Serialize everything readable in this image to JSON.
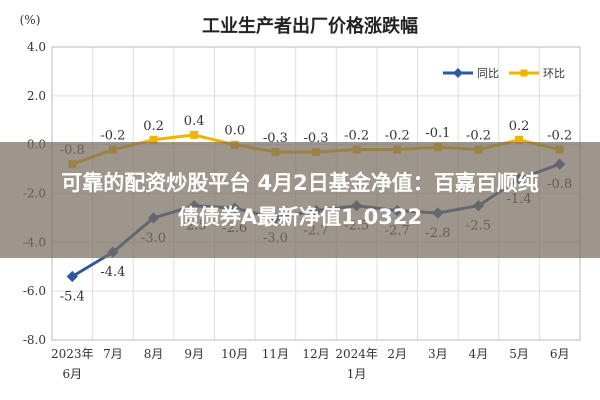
{
  "chart_data": {
    "type": "line",
    "title": "工业生产者出厂价格涨跌幅",
    "ylabel": "(%)",
    "categories": [
      "2023年6月",
      "7月",
      "8月",
      "9月",
      "10月",
      "11月",
      "12月",
      "2024年1月",
      "2月",
      "3月",
      "4月",
      "5月",
      "6月"
    ],
    "x_tick_lines": [
      [
        "2023年",
        "6月"
      ],
      [
        "7月"
      ],
      [
        "8月"
      ],
      [
        "9月"
      ],
      [
        "10月"
      ],
      [
        "11月"
      ],
      [
        "12月"
      ],
      [
        "2024年",
        "1月"
      ],
      [
        "2月"
      ],
      [
        "3月"
      ],
      [
        "4月"
      ],
      [
        "5月"
      ],
      [
        "6月"
      ]
    ],
    "ylim": [
      -8.0,
      4.0
    ],
    "y_ticks": [
      "4.0",
      "2.0",
      "0.0",
      "-2.0",
      "-4.0",
      "-6.0",
      "-8.0"
    ],
    "grid": true,
    "legend_position": "top-right",
    "series": [
      {
        "name": "同比",
        "color": "#2e5a9c",
        "values": [
          -5.4,
          -4.4,
          -3.0,
          -2.5,
          -2.6,
          -3.0,
          -2.7,
          -2.5,
          -2.7,
          -2.8,
          -2.5,
          -1.4,
          -0.8
        ],
        "labels": [
          "-5.4",
          "-4.4",
          "-3.0",
          "-2.5",
          "-2.6",
          "-3.0",
          "-2.7",
          "-2.5",
          "-2.7",
          "-2.8",
          "-2.5",
          "-1.4",
          "-0.8"
        ]
      },
      {
        "name": "环比",
        "color": "#f0b400",
        "values": [
          -0.8,
          -0.2,
          0.2,
          0.4,
          0.0,
          -0.3,
          -0.3,
          -0.2,
          -0.2,
          -0.1,
          -0.2,
          0.2,
          -0.2
        ],
        "labels": [
          "-0.8",
          "-0.2",
          "0.2",
          "0.4",
          "0.0",
          "-0.3",
          "-0.3",
          "-0.2",
          "-0.2",
          "-0.1",
          "-0.2",
          "0.2",
          "-0.2"
        ]
      }
    ]
  },
  "overlay": {
    "line1": "可靠的配资炒股平台 4月2日基金净值：百嘉百顺纯",
    "line2": "债债券A最新净值1.0322"
  }
}
